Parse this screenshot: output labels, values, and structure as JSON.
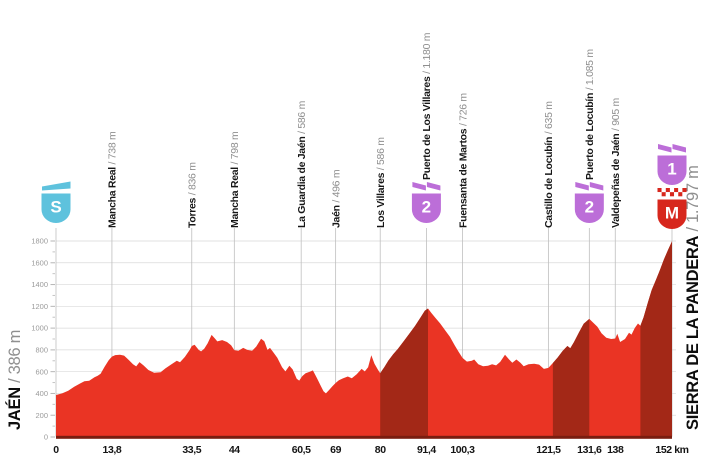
{
  "chart_data": {
    "type": "area",
    "title": "",
    "x_unit": "km",
    "xlim": [
      0,
      152
    ],
    "ylim": [
      0,
      1800
    ],
    "grid": "on",
    "y_ticks": [
      0,
      200,
      400,
      600,
      800,
      1000,
      1200,
      1400,
      1600,
      1800
    ],
    "x_ticks": [
      {
        "km": 0,
        "label": "0"
      },
      {
        "km": 13.8,
        "label": "13,8"
      },
      {
        "km": 33.5,
        "label": "33,5"
      },
      {
        "km": 44,
        "label": "44"
      },
      {
        "km": 60.5,
        "label": "60,5"
      },
      {
        "km": 69,
        "label": "69"
      },
      {
        "km": 80,
        "label": "80"
      },
      {
        "km": 91.4,
        "label": "91,4"
      },
      {
        "km": 100.3,
        "label": "100,3"
      },
      {
        "km": 121.5,
        "label": "121,5"
      },
      {
        "km": 131.6,
        "label": "131,6"
      },
      {
        "km": 138,
        "label": "138"
      },
      {
        "km": 152,
        "label": "152 km"
      }
    ],
    "start": {
      "name": "JAÉN",
      "elev_label": "386 m",
      "badge": "S",
      "km": 0
    },
    "finish": {
      "name": "SIERRA DE LA PANDERA",
      "elev_label": "1.797 m",
      "badges": [
        "1",
        "M"
      ],
      "km": 152
    },
    "waypoints": [
      {
        "km": 13.8,
        "name": "Mancha Real",
        "elev_label": "738 m",
        "badge": null
      },
      {
        "km": 33.5,
        "name": "Torres",
        "elev_label": "836 m",
        "badge": null
      },
      {
        "km": 44,
        "name": "Mancha Real",
        "elev_label": "798 m",
        "badge": null
      },
      {
        "km": 60.5,
        "name": "La Guardia de Jaén",
        "elev_label": "586 m",
        "badge": null
      },
      {
        "km": 69,
        "name": "Jaén",
        "elev_label": "496 m",
        "badge": null
      },
      {
        "km": 80,
        "name": "Los Villares",
        "elev_label": "586 m",
        "badge": null
      },
      {
        "km": 91.4,
        "name": "Puerto de Los Villares",
        "elev_label": "1.180 m",
        "badge": "2"
      },
      {
        "km": 100.3,
        "name": "Fuensanta de Martos",
        "elev_label": "726 m",
        "badge": null
      },
      {
        "km": 121.5,
        "name": "Castillo de Locubín",
        "elev_label": "635 m",
        "badge": null
      },
      {
        "km": 131.6,
        "name": "Puerto de Locubín",
        "elev_label": "1.085 m",
        "badge": "2"
      },
      {
        "km": 138,
        "name": "Valdepeñas de Jaén",
        "elev_label": "905 m",
        "badge": null
      }
    ],
    "separator": " / ",
    "profile": [
      [
        0,
        386
      ],
      [
        1.5,
        400
      ],
      [
        3,
        425
      ],
      [
        4.5,
        462
      ],
      [
        6,
        492
      ],
      [
        7,
        512
      ],
      [
        8.2,
        516
      ],
      [
        9.5,
        548
      ],
      [
        10.3,
        562
      ],
      [
        11,
        580
      ],
      [
        12,
        645
      ],
      [
        13,
        705
      ],
      [
        13.8,
        738
      ],
      [
        14.6,
        752
      ],
      [
        15.8,
        756
      ],
      [
        16.8,
        748
      ],
      [
        18,
        706
      ],
      [
        19,
        668
      ],
      [
        19.8,
        648
      ],
      [
        20.6,
        688
      ],
      [
        21.6,
        658
      ],
      [
        22.8,
        615
      ],
      [
        24.2,
        590
      ],
      [
        25.8,
        594
      ],
      [
        27,
        630
      ],
      [
        28.5,
        668
      ],
      [
        29.8,
        700
      ],
      [
        30.6,
        686
      ],
      [
        31.8,
        736
      ],
      [
        33,
        800
      ],
      [
        33.5,
        836
      ],
      [
        34.2,
        848
      ],
      [
        35.2,
        800
      ],
      [
        35.8,
        786
      ],
      [
        36.6,
        812
      ],
      [
        37.4,
        860
      ],
      [
        38.4,
        938
      ],
      [
        39.2,
        905
      ],
      [
        39.8,
        878
      ],
      [
        41,
        890
      ],
      [
        42.2,
        872
      ],
      [
        43.2,
        842
      ],
      [
        44,
        798
      ],
      [
        45,
        792
      ],
      [
        46.2,
        818
      ],
      [
        47.2,
        800
      ],
      [
        48.4,
        792
      ],
      [
        49.4,
        830
      ],
      [
        50.6,
        902
      ],
      [
        51.4,
        880
      ],
      [
        52.2,
        800
      ],
      [
        52.8,
        818
      ],
      [
        53.6,
        780
      ],
      [
        54.6,
        728
      ],
      [
        55.8,
        640
      ],
      [
        56.6,
        602
      ],
      [
        57.6,
        655
      ],
      [
        58.4,
        620
      ],
      [
        59.4,
        535
      ],
      [
        60,
        518
      ],
      [
        60.8,
        560
      ],
      [
        61.6,
        586
      ],
      [
        62.6,
        600
      ],
      [
        63.4,
        612
      ],
      [
        64.4,
        540
      ],
      [
        65.2,
        480
      ],
      [
        66,
        420
      ],
      [
        66.6,
        400
      ],
      [
        67.4,
        432
      ],
      [
        68.2,
        466
      ],
      [
        69,
        496
      ],
      [
        69.8,
        522
      ],
      [
        70.8,
        538
      ],
      [
        72,
        556
      ],
      [
        73,
        540
      ],
      [
        74.2,
        576
      ],
      [
        75.4,
        625
      ],
      [
        76.2,
        602
      ],
      [
        77,
        640
      ],
      [
        77.8,
        750
      ],
      [
        78.6,
        672
      ],
      [
        79.4,
        620
      ],
      [
        80,
        586
      ],
      [
        81,
        640
      ],
      [
        82,
        700
      ],
      [
        83.2,
        760
      ],
      [
        84.4,
        810
      ],
      [
        85.8,
        880
      ],
      [
        87.2,
        950
      ],
      [
        88.6,
        1020
      ],
      [
        90,
        1100
      ],
      [
        91,
        1160
      ],
      [
        91.8,
        1180
      ],
      [
        92.6,
        1140
      ],
      [
        93.6,
        1095
      ],
      [
        94.8,
        1042
      ],
      [
        96,
        980
      ],
      [
        97.2,
        920
      ],
      [
        98.4,
        840
      ],
      [
        99.4,
        780
      ],
      [
        100.3,
        726
      ],
      [
        101.4,
        692
      ],
      [
        102.6,
        700
      ],
      [
        103.2,
        712
      ],
      [
        104.2,
        668
      ],
      [
        105.4,
        650
      ],
      [
        106.6,
        655
      ],
      [
        107.6,
        668
      ],
      [
        108.6,
        658
      ],
      [
        109.6,
        690
      ],
      [
        110.8,
        755
      ],
      [
        111.8,
        712
      ],
      [
        112.6,
        682
      ],
      [
        113.6,
        712
      ],
      [
        114.6,
        682
      ],
      [
        115.4,
        650
      ],
      [
        116.6,
        668
      ],
      [
        118,
        672
      ],
      [
        119.2,
        665
      ],
      [
        120.4,
        625
      ],
      [
        121.5,
        635
      ],
      [
        122.6,
        680
      ],
      [
        123.8,
        730
      ],
      [
        125,
        790
      ],
      [
        126.2,
        836
      ],
      [
        126.9,
        815
      ],
      [
        127.8,
        870
      ],
      [
        129,
        958
      ],
      [
        130.2,
        1040
      ],
      [
        131.6,
        1085
      ],
      [
        132.6,
        1048
      ],
      [
        133.6,
        1012
      ],
      [
        134.6,
        952
      ],
      [
        135.8,
        912
      ],
      [
        137,
        900
      ],
      [
        138,
        905
      ],
      [
        138.5,
        948
      ],
      [
        139.2,
        872
      ],
      [
        140.4,
        900
      ],
      [
        141.4,
        958
      ],
      [
        142,
        940
      ],
      [
        142.8,
        1000
      ],
      [
        143.6,
        1042
      ],
      [
        144.2,
        1022
      ],
      [
        145,
        1100
      ],
      [
        146,
        1230
      ],
      [
        147,
        1350
      ],
      [
        148,
        1440
      ],
      [
        149,
        1530
      ],
      [
        150,
        1630
      ],
      [
        151,
        1715
      ],
      [
        152,
        1797
      ]
    ],
    "steep_segments": [
      [
        80,
        91.8
      ],
      [
        122.6,
        131.6
      ],
      [
        144.2,
        152
      ]
    ],
    "colors": {
      "area_red": "#ea3424",
      "steep_dark_red": "#a32817",
      "baseline_dark": "#7a1d10",
      "grid_vertical": "#bfbfbf",
      "grid_horizontal": "#d9d9d9",
      "y_label_gray": "#9b9b9b",
      "x_label_black": "#141414",
      "waypoint_name_black": "#161616",
      "waypoint_value_gray": "#8f8f8f",
      "start_badge_cyan": "#5ec2dd",
      "category_badge_purple": "#bc6ed8",
      "meta_badge_red": "#d7271d",
      "badge_text_white": "#ffffff"
    }
  }
}
